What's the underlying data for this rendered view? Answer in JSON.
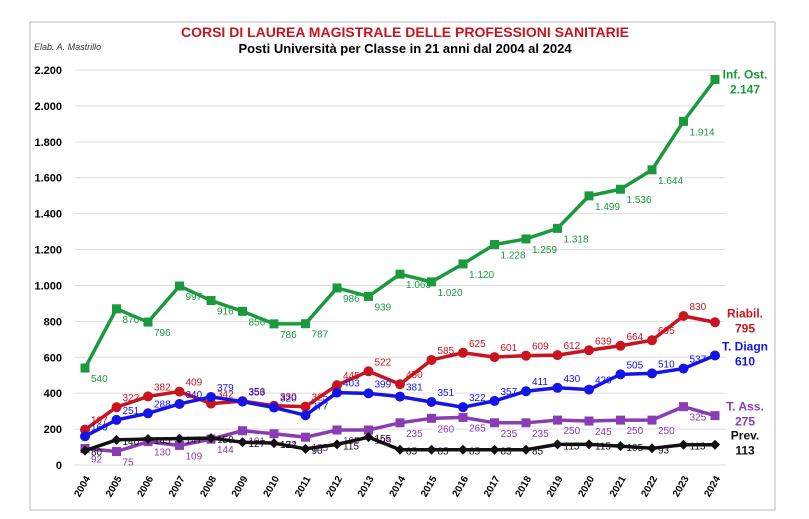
{
  "chart_data": {
    "type": "line",
    "title": "CORSI DI LAUREA MAGISTRALE DELLE PROFESSIONI SANITARIE",
    "subtitle": "Posti Università per Classe in 21 anni dal 2004 al 2024",
    "note": "Elab. A. Mastrillo",
    "categories": [
      "2004",
      "2005",
      "2006",
      "2007",
      "2008",
      "2009",
      "2010",
      "2011",
      "2012",
      "2013",
      "2014",
      "2015",
      "2016",
      "2017",
      "2018",
      "2019",
      "2020",
      "2021",
      "2022",
      "2023",
      "2024"
    ],
    "ylim": [
      0,
      2200
    ],
    "yticks": [
      0,
      200,
      400,
      600,
      800,
      {
        "value": 1000,
        "label": "1.000"
      },
      {
        "value": 1200,
        "label": "1.200"
      },
      {
        "value": 1400,
        "label": "1.400"
      },
      {
        "value": 1600,
        "label": "1.600"
      },
      {
        "value": 1800,
        "label": "1.800"
      },
      {
        "value": 2000,
        "label": "2.000"
      },
      {
        "value": 2200,
        "label": "2.200"
      }
    ],
    "grid": true,
    "series": [
      {
        "name": "Inf. Ost.",
        "color": "#1a9a3c",
        "marker": "square",
        "values": [
          540,
          870,
          796,
          997,
          916,
          856,
          786,
          787,
          986,
          939,
          1063,
          1020,
          1120,
          1228,
          1259,
          1318,
          1499,
          1536,
          1644,
          1914,
          2147
        ],
        "value_labels": [
          "540",
          "870",
          "796",
          "997",
          "916",
          "856",
          "786",
          "787",
          "986",
          "939",
          "1.063",
          "1.020",
          "1.120",
          "1.228",
          "1.259",
          "1.318",
          "1.499",
          "1.536",
          "1.644",
          "1.914",
          "2.147"
        ]
      },
      {
        "name": "Riabil.",
        "color": "#c8141e",
        "marker": "circle",
        "values": [
          197,
          322,
          382,
          409,
          342,
          356,
          330,
          325,
          445,
          522,
          450,
          585,
          625,
          601,
          609,
          612,
          639,
          664,
          695,
          830,
          795
        ]
      },
      {
        "name": "T. Diagn",
        "color": "#1414e6",
        "marker": "circle",
        "values": [
          160,
          251,
          288,
          340,
          379,
          353,
          320,
          277,
          403,
          399,
          381,
          351,
          322,
          357,
          411,
          430,
          420,
          505,
          510,
          537,
          610
        ]
      },
      {
        "name": "T. Ass.",
        "color": "#8a3cb4",
        "marker": "square",
        "values": [
          92,
          75,
          130,
          109,
          144,
          191,
          174,
          155,
          195,
          195,
          235,
          260,
          265,
          235,
          235,
          250,
          245,
          250,
          250,
          325,
          275
        ]
      },
      {
        "name": "Prev.",
        "color": "#111111",
        "marker": "diamond",
        "values": [
          80,
          140,
          145,
          147,
          150,
          127,
          122,
          90,
          115,
          155,
          85,
          85,
          85,
          85,
          85,
          115,
          115,
          105,
          93,
          113,
          113
        ]
      }
    ]
  }
}
